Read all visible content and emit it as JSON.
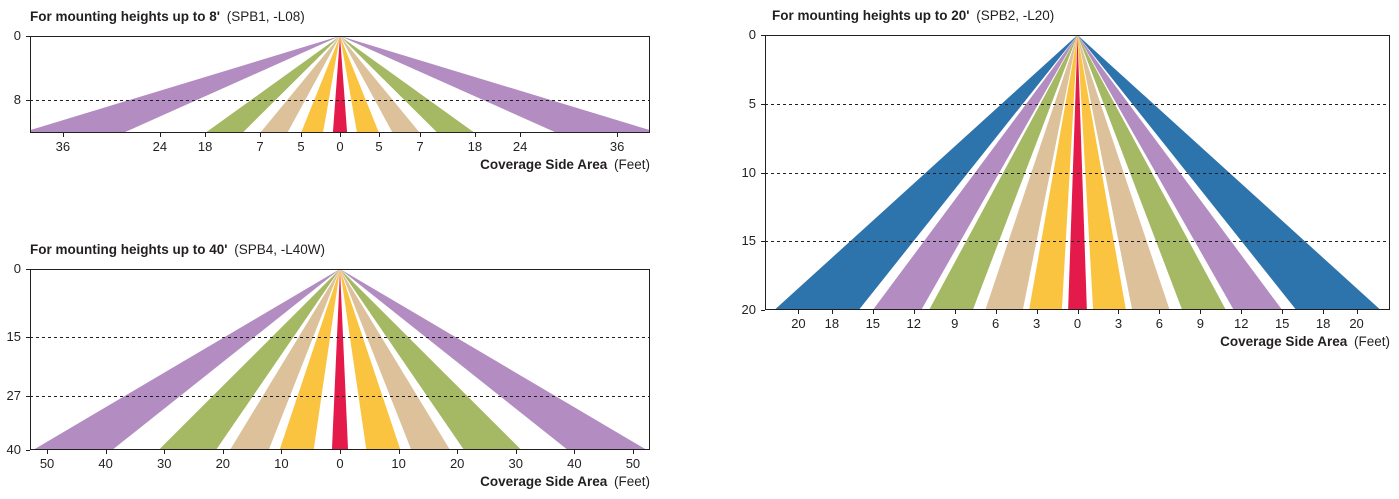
{
  "colors": {
    "red": "#e41a4b",
    "yellow": "#fbc440",
    "tan": "#dcc19b",
    "green": "#a5b964",
    "purple": "#b38cc1",
    "blue": "#2e74ac",
    "line": "#231f20",
    "text": "#231f20"
  },
  "chart_data": [
    {
      "type": "area",
      "id": "spb1-l08",
      "title": "For mounting heights up to 8'",
      "title_note": "(SPB1, -L08)",
      "xlabel": "Coverage Side Area",
      "xlabel_note": "(Feet)",
      "pos_units": "x positions are fractions of plot half-width from center; y positions are fractions of plot height from top",
      "y_ticks": [
        {
          "label": "0",
          "pos": 0.0,
          "dashed": false
        },
        {
          "label": "8",
          "pos": 0.66,
          "dashed": true
        }
      ],
      "x_ticks": [
        {
          "label": "36",
          "pos": -0.894
        },
        {
          "label": "24",
          "pos": -0.581
        },
        {
          "label": "18",
          "pos": -0.435
        },
        {
          "label": "7",
          "pos": -0.258
        },
        {
          "label": "5",
          "pos": -0.126
        },
        {
          "label": "0",
          "pos": 0.0
        },
        {
          "label": "5",
          "pos": 0.126
        },
        {
          "label": "7",
          "pos": 0.258
        },
        {
          "label": "18",
          "pos": 0.435
        },
        {
          "label": "24",
          "pos": 0.581
        },
        {
          "label": "36",
          "pos": 0.894
        }
      ],
      "beams": [
        {
          "color": "purple",
          "inner": 0.7,
          "outer": 1.03
        },
        {
          "color": "green",
          "inner": 0.315,
          "outer": 0.435
        },
        {
          "color": "tan",
          "inner": 0.17,
          "outer": 0.258
        },
        {
          "color": "yellow",
          "inner": 0.055,
          "outer": 0.126
        },
        {
          "color": "red",
          "inner": 0.0,
          "outer": 0.023,
          "center": true
        }
      ]
    },
    {
      "type": "area",
      "id": "spb4-l40w",
      "title": "For mounting heights up to 40'",
      "title_note": "(SPB4, -L40W)",
      "xlabel": "Coverage Side Area",
      "xlabel_note": "(Feet)",
      "pos_units": "x positions are fractions of plot half-width from center; y positions are fractions of plot height from top",
      "y_ticks": [
        {
          "label": "0",
          "pos": 0.0,
          "dashed": false
        },
        {
          "label": "15",
          "pos": 0.375,
          "dashed": true
        },
        {
          "label": "27",
          "pos": 0.7,
          "dashed": true
        },
        {
          "label": "40",
          "pos": 1.0,
          "dashed": false
        }
      ],
      "x_ticks": [
        {
          "label": "50",
          "pos": -0.945
        },
        {
          "label": "40",
          "pos": -0.756
        },
        {
          "label": "30",
          "pos": -0.567
        },
        {
          "label": "20",
          "pos": -0.378
        },
        {
          "label": "10",
          "pos": -0.189
        },
        {
          "label": "0",
          "pos": 0.0
        },
        {
          "label": "10",
          "pos": 0.189
        },
        {
          "label": "20",
          "pos": 0.378
        },
        {
          "label": "30",
          "pos": 0.567
        },
        {
          "label": "40",
          "pos": 0.756
        },
        {
          "label": "50",
          "pos": 0.945
        }
      ],
      "beams": [
        {
          "color": "purple",
          "inner": 0.735,
          "outer": 0.99
        },
        {
          "color": "green",
          "inner": 0.4,
          "outer": 0.585
        },
        {
          "color": "tan",
          "inner": 0.23,
          "outer": 0.355
        },
        {
          "color": "yellow",
          "inner": 0.085,
          "outer": 0.195
        },
        {
          "color": "red",
          "inner": 0.0,
          "outer": 0.026,
          "center": true
        }
      ]
    },
    {
      "type": "area",
      "id": "spb2-l20",
      "title": "For mounting heights up to 20'",
      "title_note": "(SPB2, -L20)",
      "xlabel": "Coverage Side Area",
      "xlabel_note": "(Feet)",
      "pos_units": "x positions are fractions of plot half-width from center; y positions are fractions of plot height from top",
      "y_ticks": [
        {
          "label": "0",
          "pos": 0.0,
          "dashed": false
        },
        {
          "label": "5",
          "pos": 0.25,
          "dashed": true
        },
        {
          "label": "10",
          "pos": 0.5,
          "dashed": true
        },
        {
          "label": "15",
          "pos": 0.75,
          "dashed": true
        },
        {
          "label": "20",
          "pos": 1.0,
          "dashed": false
        }
      ],
      "x_ticks": [
        {
          "label": "20",
          "pos": -0.893
        },
        {
          "label": "18",
          "pos": -0.786
        },
        {
          "label": "15",
          "pos": -0.655
        },
        {
          "label": "12",
          "pos": -0.524
        },
        {
          "label": "9",
          "pos": -0.393
        },
        {
          "label": "6",
          "pos": -0.262
        },
        {
          "label": "3",
          "pos": -0.131
        },
        {
          "label": "0",
          "pos": 0.0
        },
        {
          "label": "3",
          "pos": 0.131
        },
        {
          "label": "6",
          "pos": 0.262
        },
        {
          "label": "9",
          "pos": 0.393
        },
        {
          "label": "12",
          "pos": 0.524
        },
        {
          "label": "15",
          "pos": 0.655
        },
        {
          "label": "18",
          "pos": 0.786
        },
        {
          "label": "20",
          "pos": 0.893
        }
      ],
      "beams": [
        {
          "color": "blue",
          "inner": 0.7,
          "outer": 0.97
        },
        {
          "color": "purple",
          "inner": 0.5,
          "outer": 0.655
        },
        {
          "color": "green",
          "inner": 0.335,
          "outer": 0.475
        },
        {
          "color": "tan",
          "inner": 0.175,
          "outer": 0.295
        },
        {
          "color": "yellow",
          "inner": 0.05,
          "outer": 0.155
        },
        {
          "color": "red",
          "inner": 0.0,
          "outer": 0.03,
          "center": true
        }
      ]
    }
  ]
}
